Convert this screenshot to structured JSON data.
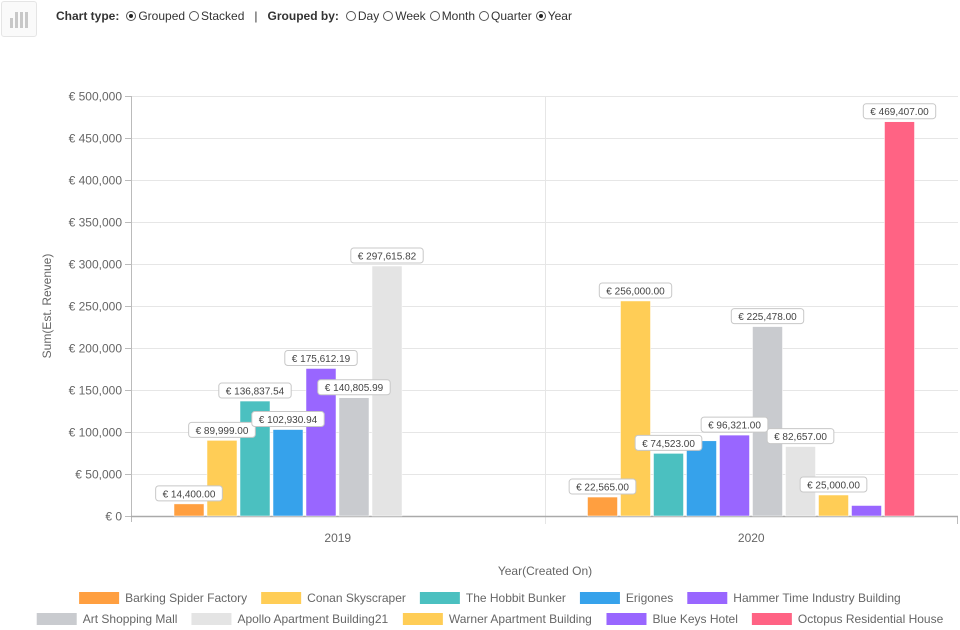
{
  "toolbar": {
    "icon": "bar-chart-icon",
    "chart_type_label": "Chart type:",
    "chart_type_options": [
      {
        "label": "Grouped",
        "checked": true
      },
      {
        "label": "Stacked",
        "checked": false
      }
    ],
    "separator": "|",
    "grouped_by_label": "Grouped by:",
    "grouped_by_options": [
      {
        "label": "Day",
        "checked": false
      },
      {
        "label": "Week",
        "checked": false
      },
      {
        "label": "Month",
        "checked": false
      },
      {
        "label": "Quarter",
        "checked": false
      },
      {
        "label": "Year",
        "checked": true
      }
    ]
  },
  "chart_data": {
    "type": "bar",
    "mode": "grouped",
    "title": "",
    "xlabel": "Year(Created On)",
    "ylabel": "Sum(Est. Revenue)",
    "ylim": [
      0,
      500000
    ],
    "yticks": [
      0,
      50000,
      100000,
      150000,
      200000,
      250000,
      300000,
      350000,
      400000,
      450000,
      500000
    ],
    "ytick_labels": [
      "€ 0",
      "€ 50,000",
      "€ 100,000",
      "€ 150,000",
      "€ 200,000",
      "€ 250,000",
      "€ 300,000",
      "€ 350,000",
      "€ 400,000",
      "€ 450,000",
      "€ 500,000"
    ],
    "grid": true,
    "legend_position": "bottom",
    "categories": [
      "2019",
      "2020"
    ],
    "series": [
      {
        "name": "Barking Spider Factory",
        "color": "#ff9f40",
        "values": [
          14400.0,
          22565.0
        ],
        "labels": [
          "€ 14,400.00",
          "€ 22,565.00"
        ]
      },
      {
        "name": "Conan Skyscraper",
        "color": "#ffcd56",
        "values": [
          89999.0,
          256000.0
        ],
        "labels": [
          "€ 89,999.00",
          "€ 256,000.00"
        ]
      },
      {
        "name": "The Hobbit Bunker",
        "color": "#4bc0c0",
        "values": [
          136837.54,
          74523.0
        ],
        "labels": [
          "€ 136,837.54",
          "€ 74,523.00"
        ]
      },
      {
        "name": "Erigones",
        "color": "#36a2eb",
        "values": [
          102930.94,
          89500
        ],
        "labels": [
          "€ 102,930.94",
          null
        ]
      },
      {
        "name": "Hammer Time Industry Building",
        "color": "#9966ff",
        "values": [
          175612.19,
          96321.0
        ],
        "labels": [
          "€ 175,612.19",
          "€ 96,321.00"
        ]
      },
      {
        "name": "Art Shopping Mall",
        "color": "#c9cbcf",
        "values": [
          140805.99,
          225478.0
        ],
        "labels": [
          "€ 140,805.99",
          "€ 225,478.00"
        ]
      },
      {
        "name": "Apollo Apartment Building21",
        "color": "#e4e4e4",
        "values": [
          297615.82,
          82657.0
        ],
        "labels": [
          "€ 297,615.82",
          "€ 82,657.00"
        ]
      },
      {
        "name": "Warner Apartment Building",
        "color": "#ffcd56",
        "values": [
          null,
          25000.0
        ],
        "labels": [
          null,
          "€ 25,000.00"
        ]
      },
      {
        "name": "Blue Keys Hotel",
        "color": "#9966ff",
        "values": [
          null,
          12500
        ],
        "labels": [
          null,
          null
        ]
      },
      {
        "name": "Octopus Residential House",
        "color": "#ff6384",
        "values": [
          null,
          469407.0
        ],
        "labels": [
          null,
          "€ 469,407.00"
        ]
      }
    ]
  }
}
